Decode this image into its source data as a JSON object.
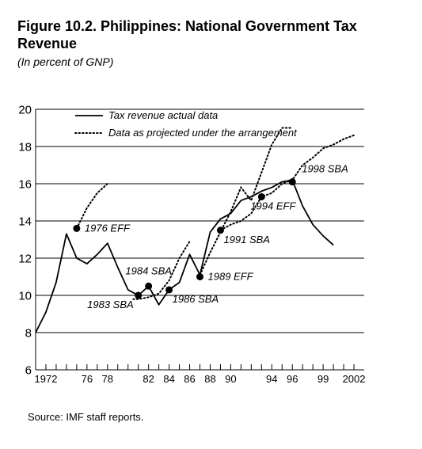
{
  "title": "Figure 10.2. Philippines: National Government Tax Revenue",
  "subtitle": "(In percent of GNP)",
  "source": "Source: IMF staff reports.",
  "chart_data": {
    "type": "line",
    "xlim": [
      1971,
      2003
    ],
    "ylim": [
      6,
      20
    ],
    "y_ticks": [
      6,
      8,
      10,
      12,
      14,
      16,
      18,
      20
    ],
    "x_tick_labels": [
      {
        "x": 1972,
        "label": "1972"
      },
      {
        "x": 1976,
        "label": "76"
      },
      {
        "x": 1978,
        "label": "78"
      },
      {
        "x": 1982,
        "label": "82"
      },
      {
        "x": 1984,
        "label": "84"
      },
      {
        "x": 1986,
        "label": "86"
      },
      {
        "x": 1988,
        "label": "88"
      },
      {
        "x": 1990,
        "label": "90"
      },
      {
        "x": 1994,
        "label": "94"
      },
      {
        "x": 1996,
        "label": "96"
      },
      {
        "x": 1999,
        "label": "99"
      },
      {
        "x": 2002,
        "label": "2002"
      }
    ],
    "grid": "horizontal",
    "legend_position": "top-left",
    "series": [
      {
        "name": "Tax revenue actual data",
        "style": "solid",
        "points": [
          [
            1971,
            8.0
          ],
          [
            1972,
            9.1
          ],
          [
            1973,
            10.7
          ],
          [
            1974,
            13.3
          ],
          [
            1975,
            12.0
          ],
          [
            1976,
            11.7
          ],
          [
            1977,
            12.2
          ],
          [
            1978,
            12.8
          ],
          [
            1979,
            11.5
          ],
          [
            1980,
            10.3
          ],
          [
            1981,
            10.0
          ],
          [
            1982,
            10.5
          ],
          [
            1983,
            9.5
          ],
          [
            1984,
            10.3
          ],
          [
            1985,
            10.7
          ],
          [
            1986,
            12.2
          ],
          [
            1987,
            11.1
          ],
          [
            1988,
            13.4
          ],
          [
            1989,
            14.1
          ],
          [
            1990,
            14.4
          ],
          [
            1991,
            15.1
          ],
          [
            1992,
            15.3
          ],
          [
            1993,
            15.6
          ],
          [
            1994,
            15.8
          ],
          [
            1995,
            16.1
          ],
          [
            1996,
            16.2
          ],
          [
            1997,
            14.8
          ],
          [
            1998,
            13.8
          ],
          [
            1999,
            13.2
          ],
          [
            2000,
            12.7
          ]
        ]
      },
      {
        "name": "Data as projected under the arrangement",
        "style": "dotted",
        "segments": [
          [
            [
              1975,
              13.6
            ],
            [
              1976,
              14.7
            ],
            [
              1977,
              15.5
            ],
            [
              1978,
              16.0
            ]
          ],
          [
            [
              1980.5,
              9.8
            ],
            [
              1981,
              9.8
            ],
            [
              1982,
              9.9
            ],
            [
              1983,
              10.1
            ],
            [
              1984,
              10.8
            ],
            [
              1985,
              12.0
            ],
            [
              1986,
              12.9
            ]
          ],
          [
            [
              1987,
              11.1
            ],
            [
              1988,
              12.3
            ],
            [
              1989,
              13.4
            ],
            [
              1990,
              14.5
            ],
            [
              1991,
              15.8
            ],
            [
              1992,
              15.1
            ],
            [
              1994,
              18.1
            ],
            [
              1995,
              19.0
            ],
            [
              1996,
              19.0
            ]
          ],
          [
            [
              1989,
              13.5
            ],
            [
              1990,
              13.8
            ],
            [
              1991,
              14.0
            ],
            [
              1992,
              14.4
            ],
            [
              1993,
              15.3
            ],
            [
              1994,
              15.5
            ],
            [
              1995,
              16.0
            ],
            [
              1996,
              16.2
            ],
            [
              1997,
              17.0
            ],
            [
              1998,
              17.4
            ],
            [
              1999,
              17.9
            ],
            [
              2000,
              18.1
            ],
            [
              2001,
              18.4
            ],
            [
              2002,
              18.6
            ]
          ]
        ]
      }
    ],
    "annotations": [
      {
        "label": "1976 EFF",
        "x": 1975,
        "y": 13.6,
        "anchor": "right"
      },
      {
        "label": "1983 SBA",
        "x": 1981,
        "y": 10.0,
        "anchor": "below-left"
      },
      {
        "label": "1984 SBA",
        "x": 1982,
        "y": 10.5,
        "anchor": "above"
      },
      {
        "label": "1986 SBA",
        "x": 1984,
        "y": 10.3,
        "anchor": "below-right"
      },
      {
        "label": "1989 EFF",
        "x": 1987,
        "y": 11.0,
        "anchor": "right"
      },
      {
        "label": "1991 SBA",
        "x": 1989,
        "y": 13.5,
        "anchor": "below-right"
      },
      {
        "label": "1994 EFF",
        "x": 1993,
        "y": 15.3,
        "anchor": "below"
      },
      {
        "label": "1998 SBA",
        "x": 1996,
        "y": 16.1,
        "anchor": "above-right"
      }
    ]
  }
}
